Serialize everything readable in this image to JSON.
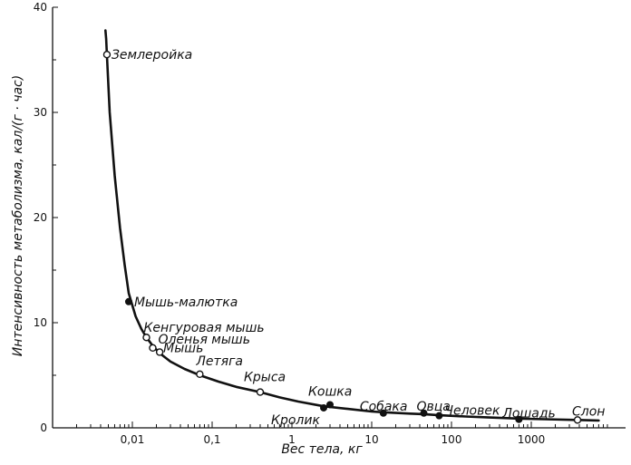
{
  "chart_data": {
    "type": "scatter",
    "title": "",
    "xlabel": "Вес тела, кг",
    "ylabel": "Интенсивность метаболизма, кал/(г · час)",
    "x_scale": "log",
    "xlim": [
      0.001,
      10000
    ],
    "ylim": [
      0,
      40
    ],
    "x_ticks": [
      {
        "value": 0.01,
        "label": "0,01"
      },
      {
        "value": 0.1,
        "label": "0,1"
      },
      {
        "value": 1,
        "label": "1"
      },
      {
        "value": 10,
        "label": "10"
      },
      {
        "value": 100,
        "label": "100"
      },
      {
        "value": 1000,
        "label": "1000"
      }
    ],
    "y_ticks": [
      {
        "value": 0,
        "label": "0"
      },
      {
        "value": 10,
        "label": "10"
      },
      {
        "value": 20,
        "label": "20"
      },
      {
        "value": 30,
        "label": "30"
      },
      {
        "value": 40,
        "label": "40"
      }
    ],
    "grid": false,
    "points": [
      {
        "name": "Землеройка",
        "x": 0.0048,
        "y": 35.5,
        "filled": false
      },
      {
        "name": "Мышь-малютка",
        "x": 0.009,
        "y": 12.0,
        "filled": true
      },
      {
        "name": "Кенгуровая мышь",
        "x": 0.015,
        "y": 8.6,
        "filled": false
      },
      {
        "name": "Оленья мышь",
        "x": 0.018,
        "y": 7.6,
        "filled": false
      },
      {
        "name": "Мышь",
        "x": 0.022,
        "y": 7.2,
        "filled": false
      },
      {
        "name": "Летяга",
        "x": 0.07,
        "y": 5.1,
        "filled": false
      },
      {
        "name": "Крыса",
        "x": 0.4,
        "y": 3.4,
        "filled": false
      },
      {
        "name": "Кролик",
        "x": 2.5,
        "y": 1.9,
        "filled": true
      },
      {
        "name": "Кошка",
        "x": 3.0,
        "y": 2.2,
        "filled": true
      },
      {
        "name": "Собака",
        "x": 14,
        "y": 1.4,
        "filled": true
      },
      {
        "name": "Овца",
        "x": 45,
        "y": 1.4,
        "filled": true
      },
      {
        "name": "Человек",
        "x": 70,
        "y": 1.15,
        "filled": true
      },
      {
        "name": "Лошадь",
        "x": 700,
        "y": 0.8,
        "filled": true
      },
      {
        "name": "Слон",
        "x": 3800,
        "y": 0.75,
        "filled": false
      }
    ],
    "trend_curve": {
      "x": [
        0.0046,
        0.0047,
        0.0048,
        0.0052,
        0.006,
        0.007,
        0.008,
        0.009,
        0.011,
        0.013,
        0.015,
        0.018,
        0.022,
        0.03,
        0.045,
        0.07,
        0.12,
        0.2,
        0.4,
        0.7,
        1.2,
        2.5,
        5,
        10,
        14,
        30,
        45,
        70,
        150,
        300,
        700,
        1500,
        3800,
        7000
      ],
      "y": [
        37.8,
        37.0,
        35.5,
        30.0,
        24.0,
        19.0,
        15.5,
        12.8,
        10.6,
        9.4,
        8.6,
        7.8,
        7.1,
        6.3,
        5.6,
        5.0,
        4.4,
        3.9,
        3.4,
        2.9,
        2.5,
        2.05,
        1.8,
        1.55,
        1.48,
        1.35,
        1.3,
        1.2,
        1.08,
        0.98,
        0.88,
        0.82,
        0.75,
        0.7
      ]
    }
  }
}
